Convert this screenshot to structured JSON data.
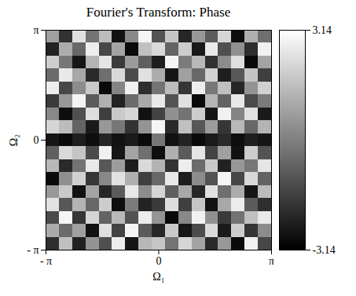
{
  "chart_data": {
    "type": "heatmap",
    "title": "Fourier's Transform: Phase",
    "x_label": "Ω₁",
    "y_label": "Ω₂",
    "xlim": [
      -3.14159,
      3.14159
    ],
    "ylim": [
      -3.14159,
      3.14159
    ],
    "xticks": [
      {
        "value": -3.14159,
        "label": "- π"
      },
      0,
      {
        "value": 3.14159,
        "label": "π"
      }
    ],
    "yticks": [
      {
        "value": -3.14159,
        "label": "- π"
      },
      0,
      {
        "value": 3.14159,
        "label": "π"
      }
    ],
    "colorbar_lim": [
      -3.14,
      3.14
    ],
    "colorbar_ticks": [
      -3.14,
      3.14
    ],
    "cells": [
      [
        0.8,
        -1.9,
        2.4,
        -0.3,
        1.5,
        -2.7,
        0.2,
        2.9,
        -1.1,
        1.7,
        -2.2,
        0.6,
        -0.9,
        2.1,
        -2.8,
        1.2,
        -0.4
      ],
      [
        -2.3,
        1.1,
        -0.6,
        2.7,
        -1.4,
        0.9,
        -2.9,
        1.6,
        2.2,
        -0.7,
        1.9,
        -2.5,
        2.6,
        -1.2,
        0.4,
        -2.0,
        2.8
      ],
      [
        1.9,
        -0.2,
        -2.6,
        1.3,
        2.5,
        -1.7,
        0.7,
        -0.8,
        -2.4,
        2.9,
        -0.1,
        1.4,
        -1.9,
        0.3,
        2.3,
        -2.9,
        0.9
      ],
      [
        -0.5,
        2.6,
        1.0,
        -2.1,
        -0.4,
        2.2,
        -1.3,
        2.4,
        1.1,
        -2.6,
        0.8,
        -0.6,
        2.0,
        -2.4,
        -1.0,
        1.7,
        -1.6
      ],
      [
        2.7,
        -1.4,
        0.3,
        1.8,
        -2.9,
        0.1,
        2.8,
        -2.0,
        -0.3,
        1.5,
        -1.8,
        2.7,
        -0.2,
        1.6,
        -2.2,
        0.5,
        2.0
      ],
      [
        -1.7,
        0.6,
        2.9,
        -0.9,
        1.2,
        -2.3,
        -0.5,
        1.0,
        2.6,
        -1.1,
        2.4,
        -2.9,
        1.3,
        -0.7,
        2.6,
        -1.3,
        -0.1
      ],
      [
        0.2,
        -2.8,
        -1.2,
        2.3,
        -1.6,
        1.8,
        2.1,
        -2.7,
        -1.5,
        0.4,
        -0.3,
        1.9,
        -2.6,
        2.8,
        0.1,
        2.4,
        -2.5
      ],
      [
        2.1,
        1.5,
        -0.7,
        -2.5,
        0.6,
        -0.2,
        -1.9,
        0.5,
        2.9,
        -2.1,
        1.6,
        -1.0,
        0.7,
        -1.8,
        1.4,
        -0.6,
        1.3
      ],
      [
        -2.6,
        -2.9,
        -2.4,
        -2.8,
        -2.2,
        -2.7,
        -2.5,
        -2.9,
        -0.2,
        -2.7,
        -2.3,
        -2.9,
        -2.5,
        -2.1,
        -2.8,
        -2.4,
        -2.6
      ],
      [
        -0.8,
        2.2,
        1.7,
        -1.3,
        2.8,
        -2.6,
        0.9,
        -0.4,
        -2.8,
        1.2,
        -0.9,
        2.5,
        -1.5,
        0.8,
        -2.7,
        1.9,
        -1.1
      ],
      [
        1.4,
        -2.1,
        -0.3,
        2.6,
        -1.0,
        0.7,
        -2.4,
        2.2,
        1.3,
        -1.9,
        2.7,
        -0.5,
        1.8,
        -2.3,
        0.6,
        -0.2,
        2.5
      ],
      [
        -2.9,
        0.4,
        2.0,
        -1.8,
        0.2,
        2.4,
        1.2,
        -1.6,
        -0.6,
        2.6,
        -2.4,
        0.3,
        -1.1,
        2.9,
        -1.4,
        2.2,
        -0.7
      ],
      [
        0.6,
        1.8,
        -2.7,
        0.9,
        -2.2,
        -0.9,
        2.6,
        0.3,
        2.1,
        -0.8,
        1.0,
        -2.2,
        2.4,
        -0.4,
        1.1,
        -2.6,
        1.5
      ],
      [
        2.4,
        -1.0,
        1.3,
        -0.6,
        1.9,
        -2.8,
        -0.1,
        -2.3,
        -1.7,
        2.3,
        -1.6,
        1.7,
        -2.7,
        1.0,
        2.7,
        -0.9,
        -2.0
      ],
      [
        -1.3,
        2.9,
        -1.8,
        2.1,
        -0.7,
        1.4,
        -1.1,
        2.7,
        0.5,
        -2.9,
        0.2,
        2.8,
        0.4,
        -1.7,
        -0.3,
        1.6,
        2.6
      ],
      [
        1.1,
        -0.5,
        0.8,
        -2.7,
        2.4,
        -1.5,
        2.9,
        -0.9,
        -2.2,
        1.8,
        -2.6,
        -1.3,
        2.2,
        -2.5,
        1.9,
        -1.8,
        0.3
      ],
      [
        -2.0,
        1.6,
        -2.3,
        0.5,
        -1.2,
        2.7,
        -2.6,
        1.4,
        1.7,
        -0.3,
        2.1,
        0.9,
        -2.1,
        0.6,
        -2.9,
        2.8,
        -1.4
      ]
    ]
  }
}
